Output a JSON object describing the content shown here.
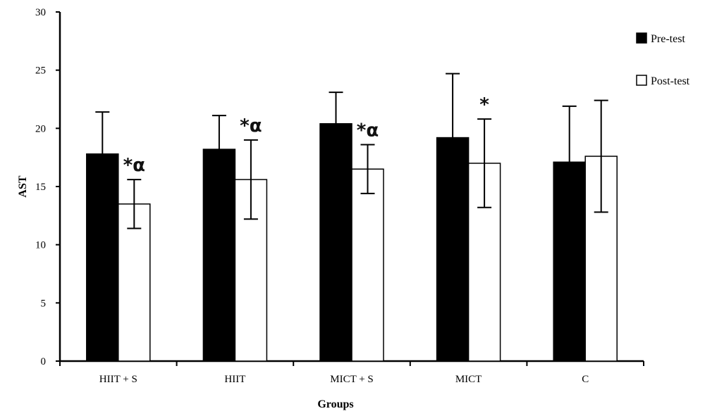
{
  "chart_data": {
    "type": "bar",
    "title": "",
    "xlabel": "Groups",
    "ylabel": "AST",
    "ylim": [
      0,
      30
    ],
    "yticks": [
      0,
      5,
      10,
      15,
      20,
      25,
      30
    ],
    "categories": [
      "HIIT + S",
      "HIIT",
      "MICT + S",
      "MICT",
      "C"
    ],
    "series": [
      {
        "name": "Pre-test",
        "color": "#000000",
        "values": [
          17.8,
          18.2,
          20.4,
          19.2,
          17.1
        ],
        "errors": [
          3.6,
          2.9,
          2.7,
          5.5,
          4.8
        ]
      },
      {
        "name": "Post-test",
        "color": "#ffffff",
        "values": [
          13.5,
          15.6,
          16.5,
          17.0,
          17.6
        ],
        "errors": [
          2.1,
          3.4,
          2.1,
          3.8,
          4.8
        ]
      }
    ],
    "annotations": [
      "*α",
      "*α",
      "*α",
      "*",
      ""
    ],
    "legend_position": "top-right",
    "grid": false
  }
}
